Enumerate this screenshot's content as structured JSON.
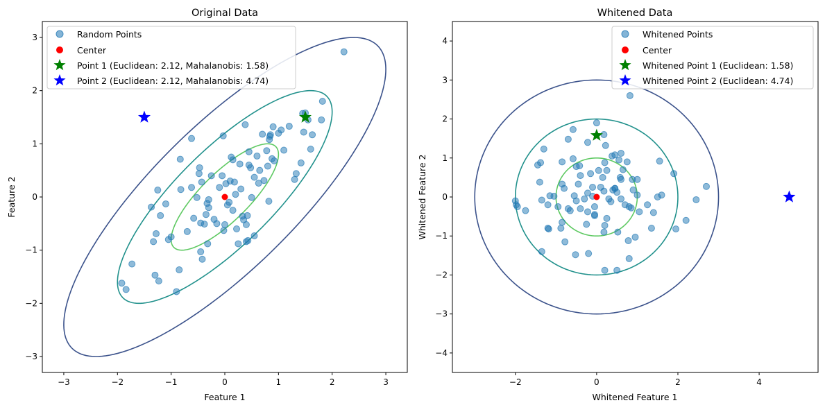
{
  "colors": {
    "scatter": "#1f77b4",
    "center": "#ff0000",
    "point1": "#008000",
    "point2": "#0000ff",
    "contours": [
      "#3b528b",
      "#21918c",
      "#5ec962"
    ]
  },
  "chart_data": [
    {
      "type": "scatter",
      "title": "Original Data",
      "xlabel": "Feature 1",
      "ylabel": "Feature 2",
      "xlim": [
        -3.4,
        3.4
      ],
      "ylim": [
        -3.3,
        3.3
      ],
      "xticks": [
        -3,
        -2,
        -1,
        0,
        1,
        2,
        3
      ],
      "yticks": [
        -3,
        -2,
        -1,
        0,
        1,
        2,
        3
      ],
      "legend_position": "top-left",
      "legend": [
        {
          "label": "Random Points",
          "marker": "circle"
        },
        {
          "label": "Center",
          "marker": "dot"
        },
        {
          "label": "Point 1 (Euclidean: 2.12, Mahalanobis: 1.58)",
          "marker": "star-green"
        },
        {
          "label": "Point 2 (Euclidean: 2.12, Mahalanobis: 4.74)",
          "marker": "star-blue"
        }
      ],
      "contours": {
        "type": "covariance-ellipse",
        "cov": [
          [
            1,
            0.8
          ],
          [
            0.8,
            1
          ]
        ],
        "levels": [
          1,
          2,
          3
        ]
      },
      "points": [
        [
          -1.92,
          -1.62
        ],
        [
          -1.84,
          -1.74
        ],
        [
          -1.73,
          -1.26
        ],
        [
          -1.37,
          -0.19
        ],
        [
          -1.33,
          -0.84
        ],
        [
          -1.3,
          -1.47
        ],
        [
          -1.28,
          -0.69
        ],
        [
          -1.25,
          0.13
        ],
        [
          -1.23,
          -1.58
        ],
        [
          -1.2,
          -0.35
        ],
        [
          -1.1,
          -0.13
        ],
        [
          -1.05,
          -0.8
        ],
        [
          -1.0,
          -0.75
        ],
        [
          -0.9,
          -1.78
        ],
        [
          -0.85,
          -1.37
        ],
        [
          -0.83,
          0.71
        ],
        [
          -0.82,
          0.14
        ],
        [
          -0.7,
          -0.65
        ],
        [
          -0.62,
          1.1
        ],
        [
          -0.62,
          0.18
        ],
        [
          -0.58,
          -0.4
        ],
        [
          -0.52,
          -0.01
        ],
        [
          -0.48,
          0.44
        ],
        [
          -0.47,
          0.55
        ],
        [
          -0.45,
          -0.49
        ],
        [
          -0.45,
          -1.03
        ],
        [
          -0.43,
          0.28
        ],
        [
          -0.42,
          -1.17
        ],
        [
          -0.38,
          -0.51
        ],
        [
          -0.35,
          -0.33
        ],
        [
          -0.33,
          -0.12
        ],
        [
          -0.32,
          -0.88
        ],
        [
          -0.3,
          -0.2
        ],
        [
          -0.3,
          -0.05
        ],
        [
          -0.25,
          0.4
        ],
        [
          -0.2,
          -0.42
        ],
        [
          -0.15,
          -0.5
        ],
        [
          -0.1,
          0.18
        ],
        [
          -0.05,
          0.4
        ],
        [
          -0.03,
          1.15
        ],
        [
          -0.02,
          -0.63
        ],
        [
          0.0,
          -0.52
        ],
        [
          0.02,
          0.25
        ],
        [
          0.05,
          -0.15
        ],
        [
          0.08,
          -0.1
        ],
        [
          0.1,
          0.3
        ],
        [
          0.12,
          0.75
        ],
        [
          0.15,
          0.7
        ],
        [
          0.15,
          -0.25
        ],
        [
          0.18,
          0.28
        ],
        [
          0.2,
          0.05
        ],
        [
          0.22,
          -0.6
        ],
        [
          0.25,
          -0.88
        ],
        [
          0.28,
          0.62
        ],
        [
          0.3,
          0.15
        ],
        [
          0.33,
          -0.36
        ],
        [
          0.35,
          -0.43
        ],
        [
          0.38,
          1.36
        ],
        [
          0.4,
          -0.84
        ],
        [
          0.4,
          -0.52
        ],
        [
          0.42,
          -0.35
        ],
        [
          0.43,
          -0.82
        ],
        [
          0.45,
          0.6
        ],
        [
          0.45,
          0.85
        ],
        [
          0.48,
          0.55
        ],
        [
          0.5,
          -0.01
        ],
        [
          0.55,
          -0.73
        ],
        [
          0.55,
          0.37
        ],
        [
          0.6,
          0.77
        ],
        [
          0.63,
          0.26
        ],
        [
          0.65,
          0.5
        ],
        [
          0.7,
          1.18
        ],
        [
          0.73,
          0.31
        ],
        [
          0.78,
          0.87
        ],
        [
          0.8,
          0.58
        ],
        [
          0.82,
          -0.08
        ],
        [
          0.83,
          1.08
        ],
        [
          0.84,
          1.14
        ],
        [
          0.85,
          1.17
        ],
        [
          0.88,
          0.72
        ],
        [
          0.9,
          1.32
        ],
        [
          0.92,
          0.68
        ],
        [
          1.0,
          1.2
        ],
        [
          1.05,
          1.26
        ],
        [
          1.1,
          0.88
        ],
        [
          1.2,
          1.33
        ],
        [
          1.3,
          0.33
        ],
        [
          1.33,
          0.44
        ],
        [
          1.42,
          0.64
        ],
        [
          1.45,
          1.57
        ],
        [
          1.47,
          1.22
        ],
        [
          1.5,
          1.58
        ],
        [
          1.55,
          1.45
        ],
        [
          1.6,
          0.9
        ],
        [
          1.63,
          1.17
        ],
        [
          1.8,
          1.45
        ],
        [
          1.82,
          1.8
        ],
        [
          2.22,
          2.73
        ]
      ],
      "center": [
        0,
        0
      ],
      "point1": [
        1.5,
        1.5
      ],
      "point2": [
        -1.5,
        1.5
      ]
    },
    {
      "type": "scatter",
      "title": "Whitened Data",
      "xlabel": "Whitened Feature 1",
      "ylabel": "Whitened Feature 2",
      "xlim": [
        -3.55,
        5.45
      ],
      "ylim": [
        -4.5,
        4.5
      ],
      "xticks": [
        -2,
        0,
        2,
        4
      ],
      "yticks": [
        -4,
        -3,
        -2,
        -1,
        0,
        1,
        2,
        3,
        4
      ],
      "legend_position": "top-right",
      "legend": [
        {
          "label": "Whitened Points",
          "marker": "circle"
        },
        {
          "label": "Center",
          "marker": "dot"
        },
        {
          "label": "Whitened Point 1 (Euclidean: 1.58)",
          "marker": "star-green"
        },
        {
          "label": "Whitened Point 2 (Euclidean: 4.74)",
          "marker": "star-blue"
        }
      ],
      "contours": {
        "type": "circle",
        "levels": [
          1,
          2,
          3
        ]
      },
      "points": [
        [
          -2.0,
          -0.1
        ],
        [
          -1.98,
          -0.2
        ],
        [
          -1.95,
          -0.25
        ],
        [
          -1.75,
          -0.35
        ],
        [
          -1.45,
          0.82
        ],
        [
          -1.4,
          0.38
        ],
        [
          -1.38,
          0.88
        ],
        [
          -1.35,
          -0.08
        ],
        [
          -1.35,
          -1.4
        ],
        [
          -1.3,
          1.23
        ],
        [
          -1.2,
          -0.2
        ],
        [
          -1.2,
          -0.8
        ],
        [
          -1.18,
          -0.82
        ],
        [
          -1.15,
          0.03
        ],
        [
          -1.05,
          0.02
        ],
        [
          -0.95,
          -0.25
        ],
        [
          -0.88,
          -0.8
        ],
        [
          -0.85,
          -0.65
        ],
        [
          -0.85,
          0.33
        ],
        [
          -0.85,
          0.9
        ],
        [
          -0.8,
          0.22
        ],
        [
          -0.78,
          -1.15
        ],
        [
          -0.7,
          1.48
        ],
        [
          -0.7,
          -0.3
        ],
        [
          -0.65,
          -0.35
        ],
        [
          -0.58,
          1.73
        ],
        [
          -0.58,
          0.98
        ],
        [
          -0.55,
          0.03
        ],
        [
          -0.52,
          -1.48
        ],
        [
          -0.5,
          0.78
        ],
        [
          -0.5,
          -0.1
        ],
        [
          -0.45,
          0.33
        ],
        [
          -0.42,
          0.8
        ],
        [
          -0.4,
          -0.3
        ],
        [
          -0.4,
          0.55
        ],
        [
          -0.3,
          -0.05
        ],
        [
          -0.25,
          -0.7
        ],
        [
          -0.22,
          -0.38
        ],
        [
          -0.22,
          1.4
        ],
        [
          -0.22,
          0.1
        ],
        [
          -0.2,
          -1.45
        ],
        [
          -0.15,
          0.6
        ],
        [
          -0.1,
          0.02
        ],
        [
          -0.1,
          0.25
        ],
        [
          -0.05,
          -0.25
        ],
        [
          -0.05,
          -0.45
        ],
        [
          -0.05,
          -0.48
        ],
        [
          0.0,
          1.9
        ],
        [
          0.05,
          0.68
        ],
        [
          0.1,
          0.25
        ],
        [
          0.15,
          0.5
        ],
        [
          0.18,
          1.6
        ],
        [
          0.18,
          -0.9
        ],
        [
          0.18,
          0.15
        ],
        [
          0.2,
          0.88
        ],
        [
          0.2,
          -0.73
        ],
        [
          0.22,
          1.32
        ],
        [
          0.25,
          -0.55
        ],
        [
          0.25,
          0.68
        ],
        [
          0.3,
          -0.05
        ],
        [
          0.35,
          -0.12
        ],
        [
          0.38,
          1.05
        ],
        [
          0.4,
          0.18
        ],
        [
          0.45,
          0.22
        ],
        [
          0.45,
          0.22
        ],
        [
          0.45,
          1.08
        ],
        [
          0.5,
          0.12
        ],
        [
          0.52,
          -0.9
        ],
        [
          0.55,
          0.95
        ],
        [
          0.58,
          0.5
        ],
        [
          0.6,
          0.45
        ],
        [
          0.6,
          1.12
        ],
        [
          0.6,
          -0.05
        ],
        [
          0.65,
          0.7
        ],
        [
          0.7,
          -0.2
        ],
        [
          0.75,
          0.9
        ],
        [
          0.78,
          -1.12
        ],
        [
          0.8,
          -1.58
        ],
        [
          0.8,
          -0.25
        ],
        [
          0.82,
          2.6
        ],
        [
          0.85,
          -0.28
        ],
        [
          0.88,
          0.45
        ],
        [
          0.9,
          0.18
        ],
        [
          0.95,
          -1.03
        ],
        [
          1.0,
          0.45
        ],
        [
          1.0,
          0.05
        ],
        [
          1.05,
          -0.38
        ],
        [
          1.25,
          -0.2
        ],
        [
          1.35,
          -0.8
        ],
        [
          1.4,
          -0.4
        ],
        [
          1.5,
          0.0
        ],
        [
          1.55,
          0.92
        ],
        [
          1.6,
          0.05
        ],
        [
          1.9,
          0.6
        ],
        [
          1.95,
          -0.82
        ],
        [
          2.2,
          -0.6
        ],
        [
          2.45,
          -0.07
        ],
        [
          2.7,
          0.27
        ],
        [
          0.2,
          -1.88
        ],
        [
          0.5,
          -1.88
        ]
      ],
      "center": [
        0,
        0
      ],
      "point1": [
        0.0,
        1.58
      ],
      "point2": [
        4.74,
        0.0
      ]
    }
  ]
}
